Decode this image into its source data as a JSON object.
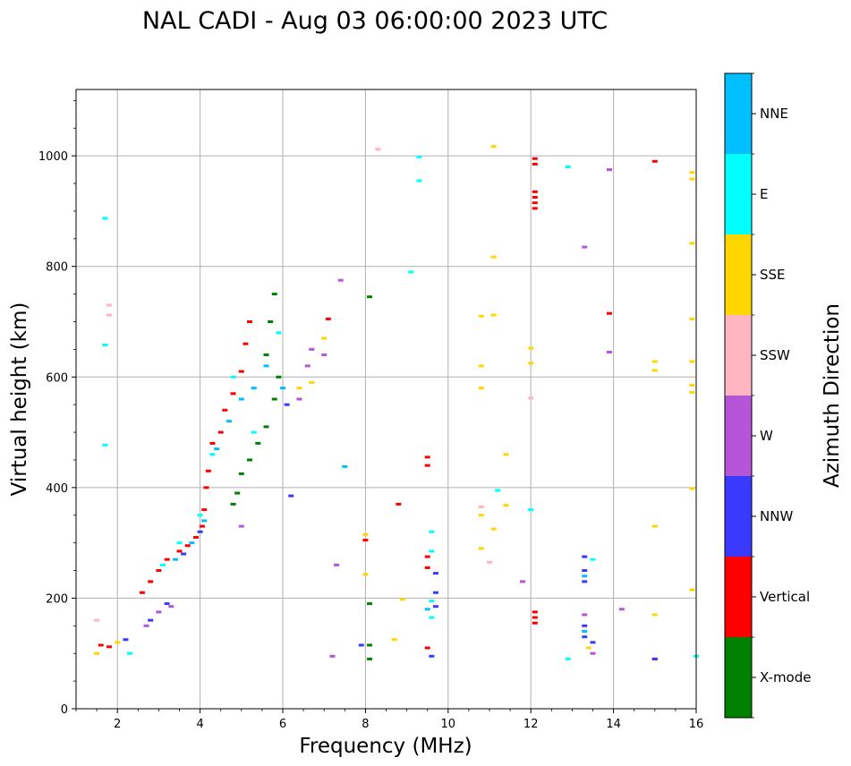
{
  "chart_data": {
    "type": "scatter",
    "title": "NAL CADI - Aug 03 06:00:00 2023 UTC",
    "xlabel": "Frequency (MHz)",
    "ylabel": "Virtual height (km)",
    "xlim": [
      1,
      16
    ],
    "ylim": [
      0,
      1120
    ],
    "xticks": [
      2,
      4,
      6,
      8,
      10,
      12,
      14,
      16
    ],
    "yticks": [
      0,
      200,
      400,
      600,
      800,
      1000
    ],
    "grid": true,
    "colorbar": {
      "label": "Azimuth Direction",
      "categories": [
        {
          "name": "X-mode",
          "color": "#008000"
        },
        {
          "name": "Vertical",
          "color": "#ff0000"
        },
        {
          "name": "NNW",
          "color": "#3a3aff"
        },
        {
          "name": "W",
          "color": "#b455d8"
        },
        {
          "name": "SSW",
          "color": "#ffb6c1"
        },
        {
          "name": "SSE",
          "color": "#ffd700"
        },
        {
          "name": "E",
          "color": "#00ffff"
        },
        {
          "name": "NNE",
          "color": "#00bfff"
        }
      ]
    },
    "series": [
      {
        "name": "Vertical",
        "points": [
          [
            1.6,
            115
          ],
          [
            1.8,
            112
          ],
          [
            2.6,
            210
          ],
          [
            2.8,
            230
          ],
          [
            3.0,
            250
          ],
          [
            3.2,
            270
          ],
          [
            3.5,
            285
          ],
          [
            3.7,
            295
          ],
          [
            3.9,
            310
          ],
          [
            4.05,
            330
          ],
          [
            4.1,
            360
          ],
          [
            4.15,
            400
          ],
          [
            4.2,
            430
          ],
          [
            4.3,
            480
          ],
          [
            4.5,
            500
          ],
          [
            4.6,
            540
          ],
          [
            4.8,
            570
          ],
          [
            5.0,
            610
          ],
          [
            5.1,
            660
          ],
          [
            5.2,
            700
          ],
          [
            7.1,
            705
          ],
          [
            8.0,
            305
          ],
          [
            8.8,
            370
          ],
          [
            9.5,
            455
          ],
          [
            9.5,
            440
          ],
          [
            9.5,
            275
          ],
          [
            9.5,
            255
          ],
          [
            9.5,
            110
          ],
          [
            12.1,
            995
          ],
          [
            12.1,
            985
          ],
          [
            12.1,
            935
          ],
          [
            12.1,
            925
          ],
          [
            12.1,
            915
          ],
          [
            12.1,
            905
          ],
          [
            12.1,
            175
          ],
          [
            12.1,
            165
          ],
          [
            12.1,
            155
          ],
          [
            13.9,
            715
          ],
          [
            15.0,
            990
          ],
          [
            15.0,
            90
          ]
        ]
      },
      {
        "name": "X-mode",
        "points": [
          [
            4.8,
            370
          ],
          [
            4.9,
            390
          ],
          [
            5.0,
            425
          ],
          [
            5.2,
            450
          ],
          [
            5.4,
            480
          ],
          [
            5.6,
            510
          ],
          [
            5.8,
            560
          ],
          [
            5.9,
            600
          ],
          [
            5.6,
            640
          ],
          [
            5.7,
            700
          ],
          [
            5.8,
            750
          ],
          [
            8.1,
            745
          ],
          [
            8.1,
            190
          ],
          [
            8.1,
            115
          ],
          [
            8.1,
            90
          ]
        ]
      },
      {
        "name": "NNW",
        "points": [
          [
            2.2,
            125
          ],
          [
            2.8,
            160
          ],
          [
            3.2,
            190
          ],
          [
            3.6,
            280
          ],
          [
            4.0,
            320
          ],
          [
            6.2,
            385
          ],
          [
            6.1,
            550
          ],
          [
            9.7,
            245
          ],
          [
            9.7,
            210
          ],
          [
            9.7,
            185
          ],
          [
            9.6,
            95
          ],
          [
            7.9,
            115
          ],
          [
            13.3,
            275
          ],
          [
            13.3,
            250
          ],
          [
            13.3,
            230
          ],
          [
            13.3,
            150
          ],
          [
            13.3,
            130
          ],
          [
            13.5,
            120
          ],
          [
            15.0,
            90
          ]
        ]
      },
      {
        "name": "W",
        "points": [
          [
            2.7,
            150
          ],
          [
            3.0,
            175
          ],
          [
            3.3,
            185
          ],
          [
            5.0,
            330
          ],
          [
            6.4,
            560
          ],
          [
            6.6,
            620
          ],
          [
            6.7,
            650
          ],
          [
            7.0,
            640
          ],
          [
            7.4,
            775
          ],
          [
            7.3,
            260
          ],
          [
            7.2,
            95
          ],
          [
            11.8,
            230
          ],
          [
            13.3,
            835
          ],
          [
            13.3,
            170
          ],
          [
            13.5,
            100
          ],
          [
            13.9,
            975
          ],
          [
            13.9,
            645
          ],
          [
            14.2,
            180
          ]
        ]
      },
      {
        "name": "SSW",
        "points": [
          [
            1.5,
            160
          ],
          [
            1.8,
            730
          ],
          [
            1.8,
            712
          ],
          [
            8.3,
            1012
          ],
          [
            10.8,
            365
          ],
          [
            11.0,
            265
          ],
          [
            12.0,
            562
          ]
        ]
      },
      {
        "name": "SSE",
        "points": [
          [
            1.5,
            100
          ],
          [
            2.0,
            120
          ],
          [
            6.4,
            580
          ],
          [
            6.7,
            590
          ],
          [
            7.0,
            670
          ],
          [
            8.0,
            315
          ],
          [
            8.0,
            243
          ],
          [
            8.7,
            125
          ],
          [
            8.9,
            198
          ],
          [
            10.8,
            710
          ],
          [
            10.8,
            620
          ],
          [
            10.8,
            580
          ],
          [
            10.8,
            350
          ],
          [
            10.8,
            290
          ],
          [
            11.1,
            1017
          ],
          [
            11.1,
            817
          ],
          [
            11.1,
            712
          ],
          [
            11.1,
            325
          ],
          [
            11.4,
            460
          ],
          [
            11.4,
            368
          ],
          [
            12.0,
            652
          ],
          [
            12.0,
            625
          ],
          [
            13.4,
            110
          ],
          [
            15.0,
            628
          ],
          [
            15.0,
            612
          ],
          [
            15.0,
            330
          ],
          [
            15.0,
            170
          ],
          [
            15.9,
            970
          ],
          [
            15.9,
            958
          ],
          [
            15.9,
            842
          ],
          [
            15.9,
            705
          ],
          [
            15.9,
            628
          ],
          [
            15.9,
            585
          ],
          [
            15.9,
            572
          ],
          [
            15.9,
            398
          ],
          [
            15.9,
            215
          ]
        ]
      },
      {
        "name": "E",
        "points": [
          [
            1.7,
            887
          ],
          [
            1.7,
            658
          ],
          [
            1.7,
            477
          ],
          [
            2.3,
            100
          ],
          [
            3.1,
            260
          ],
          [
            3.5,
            300
          ],
          [
            4.0,
            350
          ],
          [
            4.3,
            460
          ],
          [
            4.8,
            600
          ],
          [
            5.3,
            500
          ],
          [
            5.9,
            680
          ],
          [
            9.1,
            790
          ],
          [
            9.3,
            955
          ],
          [
            9.3,
            998
          ],
          [
            9.6,
            320
          ],
          [
            9.6,
            285
          ],
          [
            9.6,
            195
          ],
          [
            9.6,
            165
          ],
          [
            11.2,
            395
          ],
          [
            12.0,
            360
          ],
          [
            12.9,
            980
          ],
          [
            12.9,
            90
          ],
          [
            13.5,
            270
          ],
          [
            16.0,
            95
          ]
        ]
      },
      {
        "name": "NNE",
        "points": [
          [
            3.4,
            270
          ],
          [
            3.8,
            300
          ],
          [
            4.1,
            340
          ],
          [
            4.4,
            470
          ],
          [
            4.7,
            520
          ],
          [
            5.0,
            560
          ],
          [
            5.3,
            580
          ],
          [
            5.6,
            620
          ],
          [
            6.0,
            580
          ],
          [
            7.5,
            438
          ],
          [
            9.5,
            180
          ],
          [
            13.3,
            240
          ],
          [
            13.3,
            140
          ]
        ]
      }
    ]
  }
}
